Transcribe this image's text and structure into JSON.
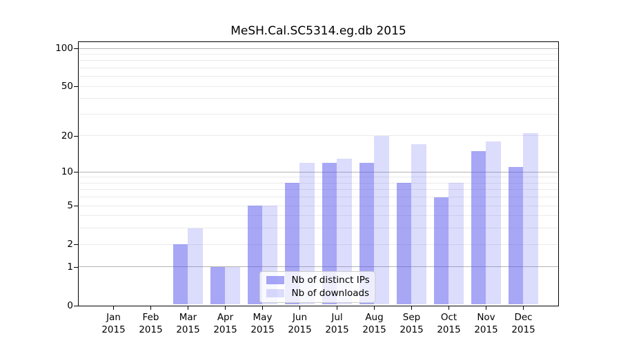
{
  "chart_data": {
    "type": "bar",
    "title": "MeSH.Cal.SC5314.eg.db 2015",
    "scale": "log10(1+x)",
    "categories": [
      "Jan",
      "Feb",
      "Mar",
      "Apr",
      "May",
      "Jun",
      "Jul",
      "Aug",
      "Sep",
      "Oct",
      "Nov",
      "Dec"
    ],
    "x_year": "2015",
    "series": [
      {
        "name": "Nb of distinct IPs",
        "values": [
          0,
          0,
          2,
          1,
          5,
          8,
          12,
          12,
          8,
          6,
          15,
          11
        ]
      },
      {
        "name": "Nb of downloads",
        "values": [
          0,
          0,
          3,
          1,
          5,
          12,
          13,
          20,
          17,
          8,
          18,
          21
        ]
      }
    ],
    "y_ticks": [
      0,
      1,
      2,
      5,
      10,
      20,
      50,
      100
    ],
    "major_grid_values": [
      1,
      10,
      100
    ],
    "minor_grid_values": [
      2,
      3,
      4,
      5,
      6,
      7,
      8,
      9,
      20,
      30,
      40,
      50,
      60,
      70,
      80,
      90
    ],
    "ylim": [
      0,
      100
    ],
    "grid": true,
    "legend_position": "bottom-center"
  },
  "colors": {
    "bar_base": "#5050ee",
    "bar_dark_opacity": 0.5,
    "bar_light_opacity": 0.2,
    "bar_dark_rendered": "#a9a9f7",
    "bar_light_rendered": "#dcdcfa",
    "major_grid": "#b4b4b4",
    "minor_grid": "#eaeaea",
    "axis": "#000000",
    "legend_border": "#cccccc"
  }
}
